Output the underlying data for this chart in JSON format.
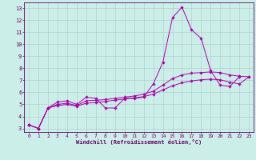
{
  "xlabel": "Windchill (Refroidissement éolien,°C)",
  "bg_color": "#cceee8",
  "grid_color": "#aaccc6",
  "line_color": "#aa00aa",
  "xlim": [
    -0.5,
    23.5
  ],
  "ylim": [
    2.7,
    13.5
  ],
  "xticks": [
    0,
    1,
    2,
    3,
    4,
    5,
    6,
    7,
    8,
    9,
    10,
    11,
    12,
    13,
    14,
    15,
    16,
    17,
    18,
    19,
    20,
    21,
    22,
    23
  ],
  "yticks": [
    3,
    4,
    5,
    6,
    7,
    8,
    9,
    10,
    11,
    12,
    13
  ],
  "line1_x": [
    0,
    1,
    2,
    3,
    4,
    5,
    6,
    7,
    8,
    9,
    10,
    11,
    12,
    13,
    14,
    15,
    16,
    17,
    18,
    19,
    20,
    21,
    22
  ],
  "line1_y": [
    3.3,
    3.0,
    4.7,
    5.2,
    5.3,
    5.0,
    5.6,
    5.5,
    4.7,
    4.7,
    5.5,
    5.5,
    5.6,
    6.7,
    8.5,
    12.2,
    13.1,
    11.2,
    10.5,
    7.8,
    6.6,
    6.5,
    7.3
  ],
  "line2_x": [
    0,
    1,
    2,
    3,
    4,
    5,
    6,
    7,
    8,
    9,
    10,
    11,
    12,
    13,
    14,
    15,
    16,
    17,
    18,
    19,
    20,
    21,
    22,
    23
  ],
  "line2_y": [
    3.3,
    3.0,
    4.7,
    5.0,
    5.1,
    4.9,
    5.3,
    5.35,
    5.4,
    5.5,
    5.6,
    5.7,
    5.85,
    6.1,
    6.6,
    7.15,
    7.45,
    7.6,
    7.65,
    7.7,
    7.65,
    7.45,
    7.35,
    7.3
  ],
  "line3_x": [
    0,
    1,
    2,
    3,
    4,
    5,
    6,
    7,
    8,
    9,
    10,
    11,
    12,
    13,
    14,
    15,
    16,
    17,
    18,
    19,
    20,
    21,
    22,
    23
  ],
  "line3_y": [
    3.3,
    3.0,
    4.7,
    4.9,
    5.0,
    4.85,
    5.1,
    5.15,
    5.25,
    5.35,
    5.45,
    5.55,
    5.65,
    5.85,
    6.2,
    6.55,
    6.8,
    6.95,
    7.05,
    7.1,
    7.05,
    6.85,
    6.7,
    7.3
  ]
}
